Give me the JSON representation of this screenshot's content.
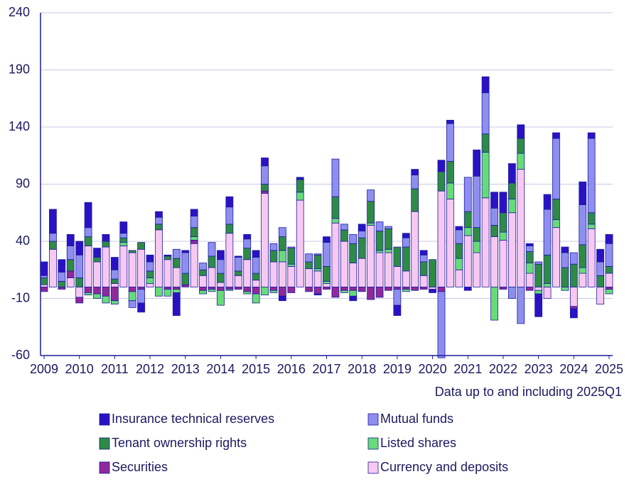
{
  "chart_data": {
    "type": "bar",
    "stacked": true,
    "note": "Data up to and including 2025Q1",
    "categories": [
      "2009",
      null,
      null,
      null,
      "2010",
      null,
      null,
      null,
      "2011",
      null,
      null,
      null,
      "2012",
      null,
      null,
      null,
      "2013",
      null,
      null,
      null,
      "2014",
      null,
      null,
      null,
      "2015",
      null,
      null,
      null,
      "2016",
      null,
      null,
      null,
      "2017",
      null,
      null,
      null,
      "2018",
      null,
      null,
      null,
      "2019",
      null,
      null,
      null,
      "2020",
      null,
      null,
      null,
      "2021",
      null,
      null,
      null,
      "2022",
      null,
      null,
      null,
      "2023",
      null,
      null,
      null,
      "2024",
      null,
      null,
      null,
      "2025"
    ],
    "series": [
      {
        "name": "Currency and deposits",
        "color": "#f7c9f2",
        "values": [
          2,
          33,
          0,
          8,
          -9,
          36,
          22,
          35,
          3,
          36,
          30,
          33,
          3,
          50,
          24,
          17,
          0,
          38,
          10,
          17,
          4,
          47,
          10,
          24,
          6,
          82,
          22,
          22,
          18,
          76,
          16,
          14,
          3,
          56,
          40,
          21,
          25,
          54,
          30,
          30,
          18,
          14,
          66,
          10,
          -2,
          84,
          77,
          15,
          45,
          30,
          78,
          44,
          41,
          65,
          103,
          12,
          -3,
          -10,
          52,
          0,
          -17,
          12,
          51,
          -15,
          12
        ]
      },
      {
        "name": "Securities",
        "color": "#8e2a9c",
        "values": [
          -4,
          0,
          -2,
          6,
          -5,
          -5,
          -6,
          -8,
          -12,
          0,
          -4,
          -2,
          0,
          0,
          -2,
          -2,
          2,
          3,
          -3,
          -2,
          -3,
          -2,
          -2,
          -4,
          -6,
          2,
          -3,
          -8,
          -5,
          0,
          -4,
          -6,
          -2,
          -9,
          -3,
          -3,
          -4,
          -11,
          -9,
          -3,
          -2,
          -2,
          -3,
          -2,
          0,
          -4,
          0,
          0,
          0,
          0,
          0,
          0,
          -2,
          0,
          0,
          -3,
          0,
          0,
          0,
          0,
          -2,
          0,
          0,
          0,
          -2
        ]
      },
      {
        "name": "Listed shares",
        "color": "#66dc78",
        "values": [
          0,
          0,
          0,
          0,
          0,
          -2,
          -4,
          -6,
          -3,
          3,
          -8,
          0,
          5,
          -8,
          -6,
          -3,
          0,
          3,
          -3,
          -2,
          -13,
          -1,
          0,
          -2,
          -8,
          -7,
          -2,
          10,
          2,
          7,
          0,
          2,
          2,
          4,
          -2,
          -5,
          0,
          2,
          2,
          3,
          0,
          -2,
          0,
          0,
          0,
          0,
          14,
          10,
          7,
          10,
          40,
          -29,
          7,
          12,
          14,
          9,
          -3,
          3,
          7,
          -3,
          0,
          5,
          4,
          0,
          -4
        ]
      },
      {
        "name": "Tenant ownership rights",
        "color": "#2e8b45",
        "values": [
          6,
          7,
          5,
          10,
          8,
          8,
          4,
          5,
          4,
          4,
          2,
          6,
          6,
          5,
          3,
          8,
          10,
          8,
          5,
          10,
          8,
          8,
          4,
          10,
          6,
          6,
          10,
          12,
          14,
          11,
          6,
          12,
          13,
          19,
          10,
          17,
          18,
          19,
          17,
          18,
          17,
          21,
          20,
          12,
          24,
          17,
          19,
          13,
          14,
          12,
          16,
          10,
          17,
          14,
          13,
          10,
          20,
          25,
          18,
          17,
          20,
          20,
          10,
          10,
          6
        ]
      },
      {
        "name": "Mutual funds",
        "color": "#8e8ef0",
        "values": [
          2,
          7,
          8,
          12,
          20,
          8,
          0,
          0,
          8,
          4,
          -6,
          -12,
          8,
          6,
          0,
          8,
          18,
          10,
          6,
          12,
          12,
          15,
          12,
          8,
          14,
          16,
          6,
          8,
          1,
          0,
          7,
          1,
          21,
          33,
          5,
          8,
          6,
          10,
          8,
          2,
          -14,
          8,
          12,
          6,
          0,
          -58,
          33,
          12,
          30,
          45,
          36,
          15,
          0,
          -10,
          -32,
          5,
          2,
          40,
          53,
          13,
          10,
          35,
          65,
          12,
          20
        ]
      },
      {
        "name": "Insurance technical reserves",
        "color": "#2a12c4",
        "values": [
          12,
          21,
          11,
          10,
          12,
          22,
          8,
          6,
          11,
          10,
          0,
          -8,
          6,
          5,
          1,
          -20,
          2,
          6,
          0,
          0,
          8,
          9,
          1,
          4,
          6,
          7,
          0,
          -4,
          0,
          2,
          0,
          -1,
          5,
          0,
          0,
          -4,
          6,
          0,
          0,
          0,
          -9,
          4,
          5,
          4,
          -3,
          10,
          3,
          3,
          -3,
          23,
          14,
          14,
          18,
          17,
          12,
          2,
          -20,
          13,
          5,
          5,
          -8,
          20,
          5,
          11,
          8
        ]
      }
    ],
    "ylim": [
      -60,
      240
    ],
    "yticks": [
      -60,
      -10,
      40,
      90,
      140,
      190,
      240
    ],
    "grid": true
  }
}
